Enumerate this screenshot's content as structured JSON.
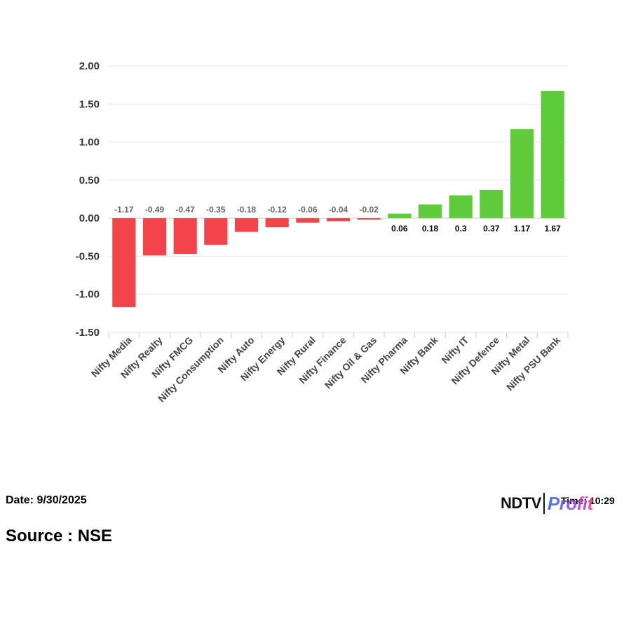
{
  "chart_data": {
    "type": "bar",
    "categories": [
      "Nifty Media",
      "Nifty Realty",
      "Nifty FMCG",
      "Nifty Consumption",
      "Nifty Auto",
      "Nifty Energy",
      "Nifty Rural",
      "Nifty Finance",
      "Nifty Oil & Gas",
      "Nifty Pharma",
      "Nifty Bank",
      "Nifty IT",
      "Nifty Defence",
      "Nifty Metal",
      "Nifty PSU Bank"
    ],
    "values": [
      -1.17,
      -0.49,
      -0.47,
      -0.35,
      -0.18,
      -0.12,
      -0.06,
      -0.04,
      -0.02,
      0.06,
      0.18,
      0.3,
      0.37,
      1.17,
      1.67
    ],
    "value_labels": [
      "-1.17",
      "-0.49",
      "-0.47",
      "-0.35",
      "-0.18",
      "-0.12",
      "-0.06",
      "-0.04",
      "-0.02",
      "0.06",
      "0.18",
      "0.3",
      "0.37",
      "1.17",
      "1.67"
    ],
    "yticks": [
      "2.00",
      "1.50",
      "1.00",
      "0.50",
      "0.00",
      "-0.50",
      "-1.00",
      "-1.50"
    ],
    "ylim": [
      -1.5,
      2.0
    ],
    "grid": true,
    "colors": {
      "negative": "#f4444b",
      "positive": "#5fcb3b"
    }
  },
  "footer": {
    "date": "Date: 9/30/2025",
    "source": "Source : NSE",
    "time": "Time: 10:29"
  },
  "logo": {
    "part1": "NDTV",
    "part2": "Profit"
  }
}
